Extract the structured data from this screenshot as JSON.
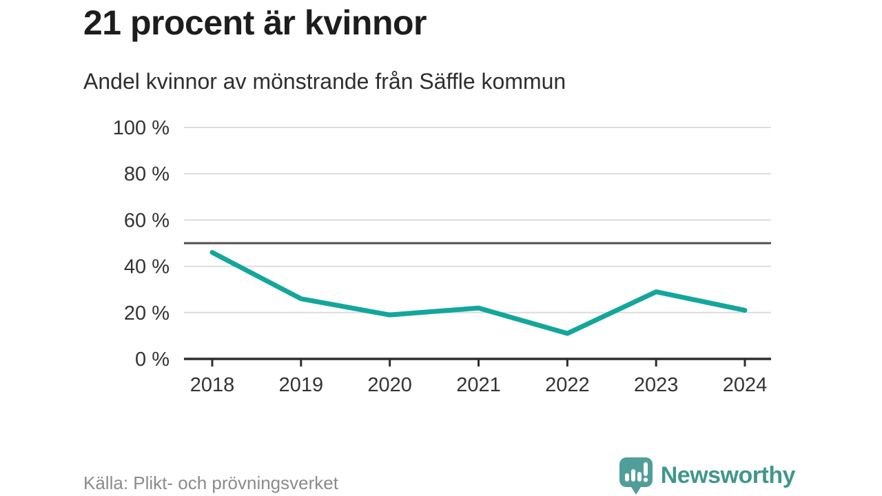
{
  "title": "21 procent är kvinnor",
  "subtitle": "Andel kvinnor av mönstrande från Säffle kommun",
  "source": "Källa: Plikt- och prövningsverket",
  "branding": {
    "name": "Newsworthy",
    "icon": "bar-chart-speech-bubble-icon",
    "text_color": "#3f968f",
    "icon_color": "#4f9e99"
  },
  "colors": {
    "background": "#ffffff",
    "title": "#1d1d1d",
    "subtitle": "#2e2e2e",
    "tick_text": "#333333",
    "grid": "#dcdcdc",
    "reference_line": "#4f4f4f",
    "axis": "#2d2d2d",
    "line": "#14a69b",
    "source_text": "#8b8b8b"
  },
  "chart_data": {
    "type": "line",
    "title": "21 procent är kvinnor",
    "subtitle": "Andel kvinnor av mönstrande från Säffle kommun",
    "x": [
      2018,
      2019,
      2020,
      2021,
      2022,
      2023,
      2024
    ],
    "series": [
      {
        "name": "Andel kvinnor av mönstrande",
        "values": [
          46,
          26,
          19,
          22,
          11,
          29,
          21
        ]
      }
    ],
    "xlabel": "",
    "ylabel": "",
    "ylim": [
      0,
      100
    ],
    "yticks": [
      0,
      20,
      40,
      60,
      80,
      100
    ],
    "ytick_format": "{v} %",
    "reference_line": 50,
    "grid": "horizontal",
    "legend": "none"
  }
}
